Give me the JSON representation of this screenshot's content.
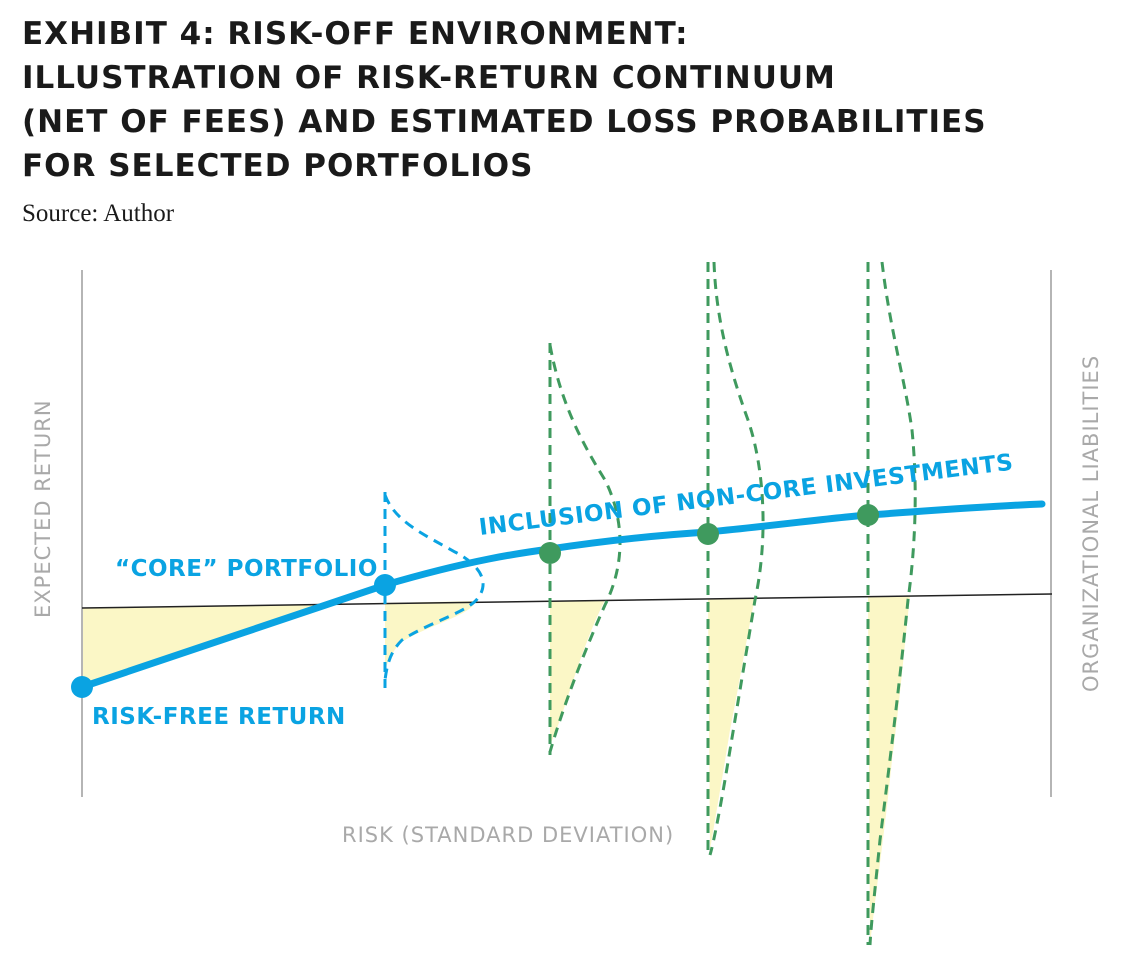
{
  "title": "EXHIBIT 4: RISK-OFF ENVIRONMENT:\nILLUSTRATION OF RISK-RETURN CONTINUUM\n(NET OF FEES) AND ESTIMATED LOSS PROBABILITIES\nFOR SELECTED PORTFOLIOS",
  "source": "Source: Author",
  "labels": {
    "y_axis": "EXPECTED RETURN",
    "x_axis": "RISK (STANDARD DEVIATION)",
    "right_axis": "ORGANIZATIONAL LIABILITIES",
    "risk_free": "RISK-FREE RETURN",
    "core": "“CORE” PORTFOLIO",
    "non_core": "INCLUSION OF NON-CORE INVESTMENTS"
  },
  "colors": {
    "frontier": "#0aa3e2",
    "non_core": "#3f9a5e",
    "loss_fill": "#fbf7c6",
    "axis": "#b5b5b5",
    "liability_line": "#222222"
  }
}
